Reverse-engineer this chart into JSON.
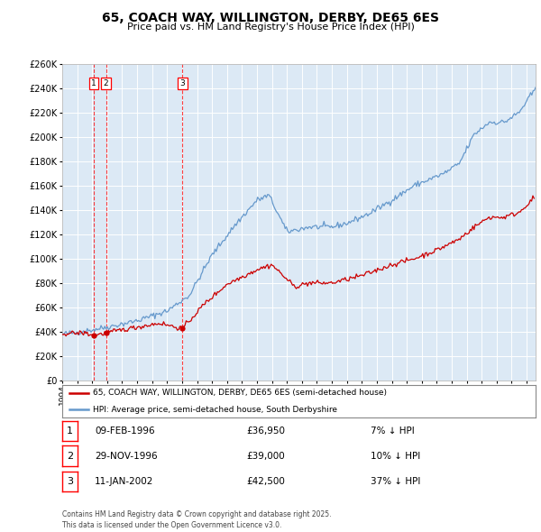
{
  "title": "65, COACH WAY, WILLINGTON, DERBY, DE65 6ES",
  "subtitle": "Price paid vs. HM Land Registry's House Price Index (HPI)",
  "legend_label_red": "65, COACH WAY, WILLINGTON, DERBY, DE65 6ES (semi-detached house)",
  "legend_label_blue": "HPI: Average price, semi-detached house, South Derbyshire",
  "footer": "Contains HM Land Registry data © Crown copyright and database right 2025.\nThis data is licensed under the Open Government Licence v3.0.",
  "sale_markers": [
    {
      "num": 1,
      "date": "09-FEB-1996",
      "price": 36950,
      "note": "7% ↓ HPI",
      "x_year": 1996.11
    },
    {
      "num": 2,
      "date": "29-NOV-1996",
      "price": 39000,
      "note": "10% ↓ HPI",
      "x_year": 1996.92
    },
    {
      "num": 3,
      "date": "11-JAN-2002",
      "price": 42500,
      "note": "37% ↓ HPI",
      "x_year": 2002.03
    }
  ],
  "vline_x": [
    1996.11,
    1996.92,
    2002.03
  ],
  "background_color": "#dce9f5",
  "plot_bg": "#dce9f5",
  "red_color": "#cc0000",
  "blue_color": "#6699cc",
  "ylim": [
    0,
    260000
  ],
  "xlim_start": 1994.0,
  "xlim_end": 2025.6,
  "ytick_step": 20000
}
